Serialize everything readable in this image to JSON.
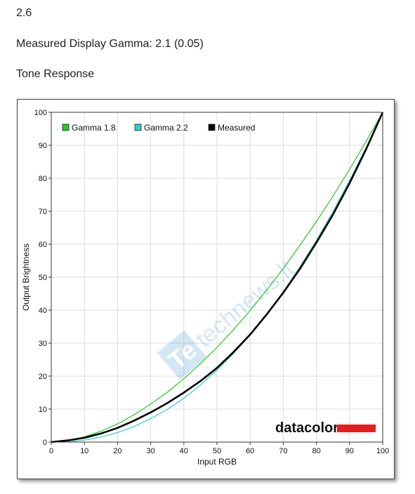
{
  "header": {
    "gamma_value": "2.6",
    "measured_gamma": "Measured Display Gamma: 2.1 (0.05)",
    "section_title": "Tone Response"
  },
  "chart_data": {
    "type": "line",
    "xlabel": "Input RGB",
    "ylabel": "Output Brightness",
    "xlim": [
      0,
      100
    ],
    "ylim": [
      0,
      100
    ],
    "xticks": [
      0,
      10,
      20,
      30,
      40,
      50,
      60,
      70,
      80,
      90,
      100
    ],
    "yticks": [
      0,
      10,
      20,
      30,
      40,
      50,
      60,
      70,
      80,
      90,
      100
    ],
    "grid": true,
    "legend_position": "top-left",
    "series": [
      {
        "name": "Gamma 1.8",
        "color": "#22cc22",
        "x": [
          0,
          5,
          10,
          15,
          20,
          25,
          30,
          35,
          40,
          45,
          50,
          55,
          60,
          65,
          70,
          75,
          80,
          85,
          90,
          95,
          100
        ],
        "y": [
          0,
          0.5,
          1.6,
          3.3,
          5.5,
          8.3,
          11.5,
          15.1,
          19.2,
          23.8,
          28.7,
          34.1,
          39.9,
          46.1,
          52.6,
          59.6,
          66.9,
          74.6,
          82.7,
          91.2,
          100
        ]
      },
      {
        "name": "Gamma 2.2",
        "color": "#33cccc",
        "x": [
          0,
          5,
          10,
          15,
          20,
          25,
          30,
          35,
          40,
          45,
          50,
          55,
          60,
          65,
          70,
          75,
          80,
          85,
          90,
          95,
          100
        ],
        "y": [
          0,
          0.1,
          0.6,
          1.5,
          2.9,
          4.7,
          7.1,
          9.9,
          13.3,
          17.3,
          21.8,
          26.9,
          32.5,
          38.8,
          45.6,
          53.1,
          61.2,
          69.9,
          79.3,
          89.3,
          100
        ]
      },
      {
        "name": "Measured",
        "color": "#000000",
        "x": [
          0,
          5,
          10,
          15,
          20,
          25,
          30,
          35,
          40,
          45,
          50,
          55,
          60,
          65,
          70,
          75,
          80,
          85,
          90,
          95,
          100
        ],
        "y": [
          0,
          0.5,
          1.3,
          2.6,
          4.3,
          6.5,
          9.0,
          11.8,
          15.0,
          18.5,
          22.5,
          27.3,
          32.6,
          38.7,
          45.3,
          52.5,
          60.5,
          69.0,
          78.5,
          88.8,
          100
        ]
      }
    ]
  },
  "branding": {
    "logo_text": "datacolor",
    "logo_bar_color": "#e02020",
    "watermark_text": "technews.lt"
  }
}
